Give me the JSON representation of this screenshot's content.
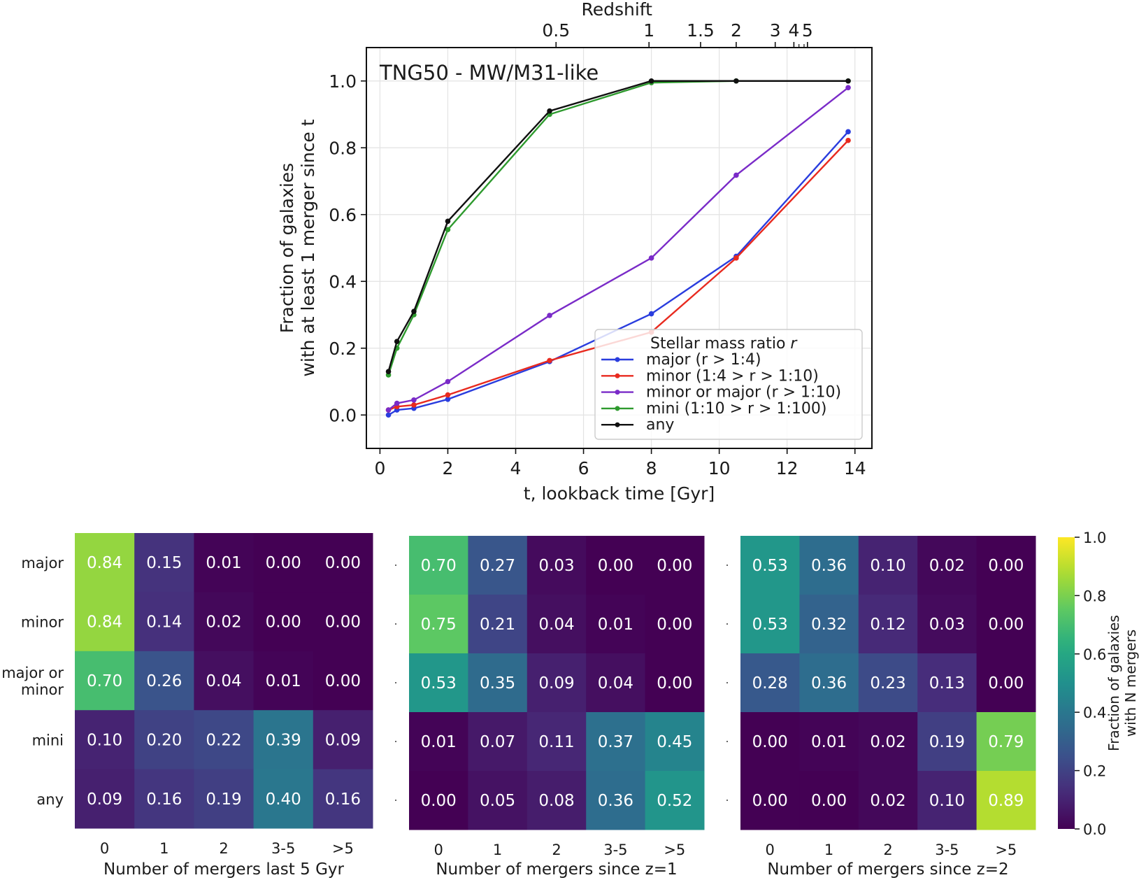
{
  "chart_data": [
    {
      "type": "line",
      "annotation": "TNG50 - MW/M31-like",
      "xlabel": "t, lookback time [Gyr]",
      "ylabel_lines": [
        "Fraction of galaxies",
        "with at least 1 merger since t"
      ],
      "xlim": [
        -0.4,
        14.5
      ],
      "ylim": [
        -0.1,
        1.1
      ],
      "x_ticks": [
        0,
        2,
        4,
        6,
        8,
        10,
        12,
        14
      ],
      "y_ticks": [
        0.0,
        0.2,
        0.4,
        0.6,
        0.8,
        1.0
      ],
      "y_tick_labels": [
        "0.0",
        "0.2",
        "0.4",
        "0.6",
        "0.8",
        "1.0"
      ],
      "grid": true,
      "top_axis": {
        "label": "Redshift",
        "ticks": [
          {
            "label": "0.5",
            "t": 5.19
          },
          {
            "label": "1",
            "t": 7.93
          },
          {
            "label": "1.5",
            "t": 9.45
          },
          {
            "label": "2",
            "t": 10.5
          },
          {
            "label": "3",
            "t": 11.65
          },
          {
            "label": "4",
            "t": 12.2
          },
          {
            "label": "5",
            "t": 12.6
          }
        ],
        "minor_ticks": [
          12.35,
          12.5
        ]
      },
      "legend": {
        "title": "Stellar mass ratio r",
        "position": "lower-right"
      },
      "x": [
        0.25,
        0.5,
        1.0,
        2.0,
        5.0,
        8.0,
        10.5,
        13.8
      ],
      "series": [
        {
          "name": "major (r > 1:4)",
          "color": "#2a3dde",
          "values": [
            0.0,
            0.015,
            0.02,
            0.047,
            0.16,
            0.303,
            0.475,
            0.848
          ]
        },
        {
          "name": "minor (1:4 > r > 1:10)",
          "color": "#e82a1f",
          "values": [
            0.015,
            0.025,
            0.03,
            0.06,
            0.163,
            0.248,
            0.47,
            0.822
          ]
        },
        {
          "name": "minor or major (r > 1:10)",
          "color": "#7a2bc8",
          "values": [
            0.015,
            0.035,
            0.045,
            0.1,
            0.298,
            0.47,
            0.718,
            0.98
          ]
        },
        {
          "name": "mini (1:10 > r > 1:100)",
          "color": "#2e9a2e",
          "values": [
            0.12,
            0.2,
            0.3,
            0.555,
            0.9,
            0.995,
            1.0,
            1.0
          ]
        },
        {
          "name": "any",
          "color": "#101010",
          "values": [
            0.13,
            0.22,
            0.31,
            0.58,
            0.91,
            1.0,
            1.0,
            1.0
          ]
        }
      ]
    },
    {
      "type": "heatmap",
      "xlabel": "Number of mergers last 5 Gyr",
      "x_categories": [
        "0",
        "1",
        "2",
        "3-5",
        ">5"
      ],
      "y_categories": [
        "major",
        "minor",
        "major or\nminor",
        "mini",
        "any"
      ],
      "values": [
        [
          0.84,
          0.15,
          0.01,
          0.0,
          0.0
        ],
        [
          0.84,
          0.14,
          0.02,
          0.0,
          0.0
        ],
        [
          0.7,
          0.26,
          0.04,
          0.01,
          0.0
        ],
        [
          0.1,
          0.2,
          0.22,
          0.39,
          0.09
        ],
        [
          0.09,
          0.16,
          0.19,
          0.4,
          0.16
        ]
      ]
    },
    {
      "type": "heatmap",
      "xlabel": "Number of mergers since z=1",
      "x_categories": [
        "0",
        "1",
        "2",
        "3-5",
        ">5"
      ],
      "values": [
        [
          0.7,
          0.27,
          0.03,
          0.0,
          0.0
        ],
        [
          0.75,
          0.21,
          0.04,
          0.01,
          0.0
        ],
        [
          0.53,
          0.35,
          0.09,
          0.04,
          0.0
        ],
        [
          0.01,
          0.07,
          0.11,
          0.37,
          0.45
        ],
        [
          0.0,
          0.05,
          0.08,
          0.36,
          0.52
        ]
      ]
    },
    {
      "type": "heatmap",
      "xlabel": "Number of mergers since z=2",
      "x_categories": [
        "0",
        "1",
        "2",
        "3-5",
        ">5"
      ],
      "values": [
        [
          0.53,
          0.36,
          0.1,
          0.02,
          0.0
        ],
        [
          0.53,
          0.32,
          0.12,
          0.03,
          0.0
        ],
        [
          0.28,
          0.36,
          0.23,
          0.13,
          0.0
        ],
        [
          0.0,
          0.01,
          0.02,
          0.19,
          0.79
        ],
        [
          0.0,
          0.0,
          0.02,
          0.1,
          0.89
        ]
      ],
      "colorbar": {
        "label_lines": [
          "Fraction of galaxies",
          "with N mergers"
        ],
        "ticks": [
          0.0,
          0.2,
          0.4,
          0.6,
          0.8,
          1.0
        ],
        "tick_labels": [
          "0.0",
          "0.2",
          "0.4",
          "0.6",
          "0.8",
          "1.0"
        ],
        "range": [
          0.0,
          1.0
        ]
      }
    }
  ]
}
